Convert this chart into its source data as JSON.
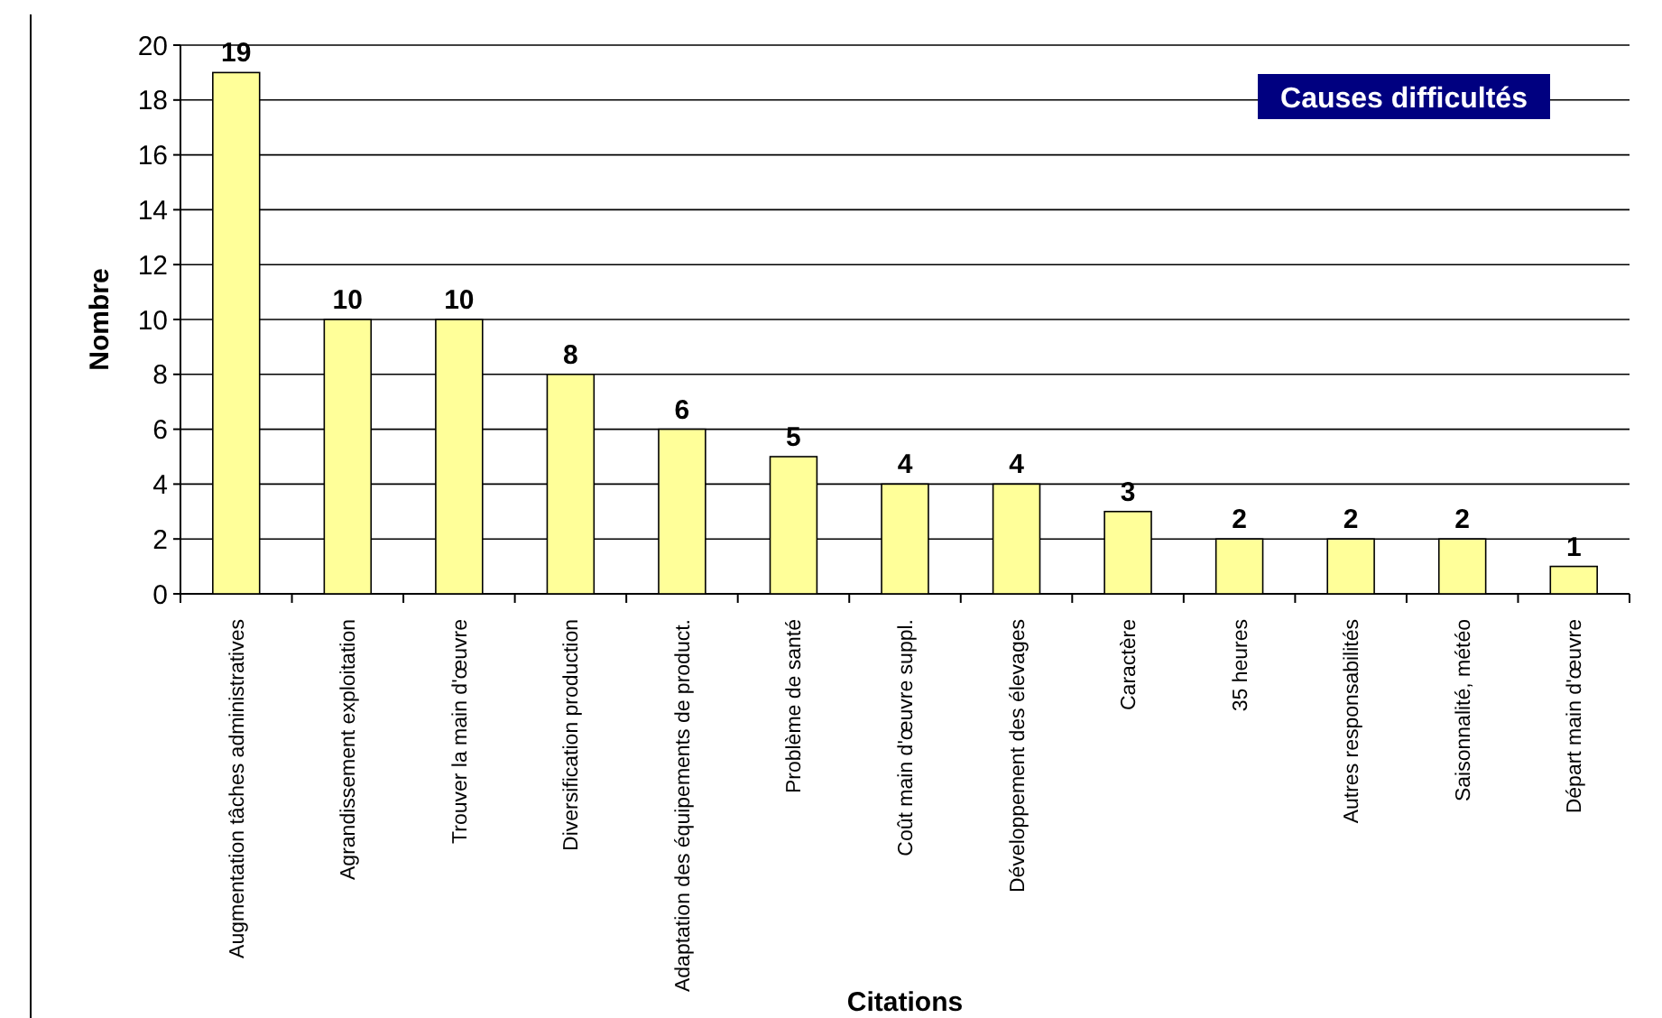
{
  "chart_data": {
    "type": "bar",
    "title": "Causes difficultés",
    "xlabel": "Citations",
    "ylabel": "Nombre",
    "categories": [
      "Augmentation tâches administratives",
      "Agrandissement exploitation",
      "Trouver la main d'œuvre",
      "Diversification production",
      "Adaptation des équipements de product.",
      "Problème de santé",
      "Coût main d'œuvre suppl.",
      "Développement des élevages",
      "Caractère",
      "35 heures",
      "Autres responsabilités",
      "Saisonnalité, météo",
      "Départ main d'œuvre"
    ],
    "values": [
      19,
      10,
      10,
      8,
      6,
      5,
      4,
      4,
      3,
      2,
      2,
      2,
      1
    ],
    "color": "#ffff99",
    "ylim": [
      0,
      20
    ],
    "yticks": [
      0,
      2,
      4,
      6,
      8,
      10,
      12,
      14,
      16,
      18,
      20
    ],
    "grid": "y",
    "data_labels": true
  }
}
